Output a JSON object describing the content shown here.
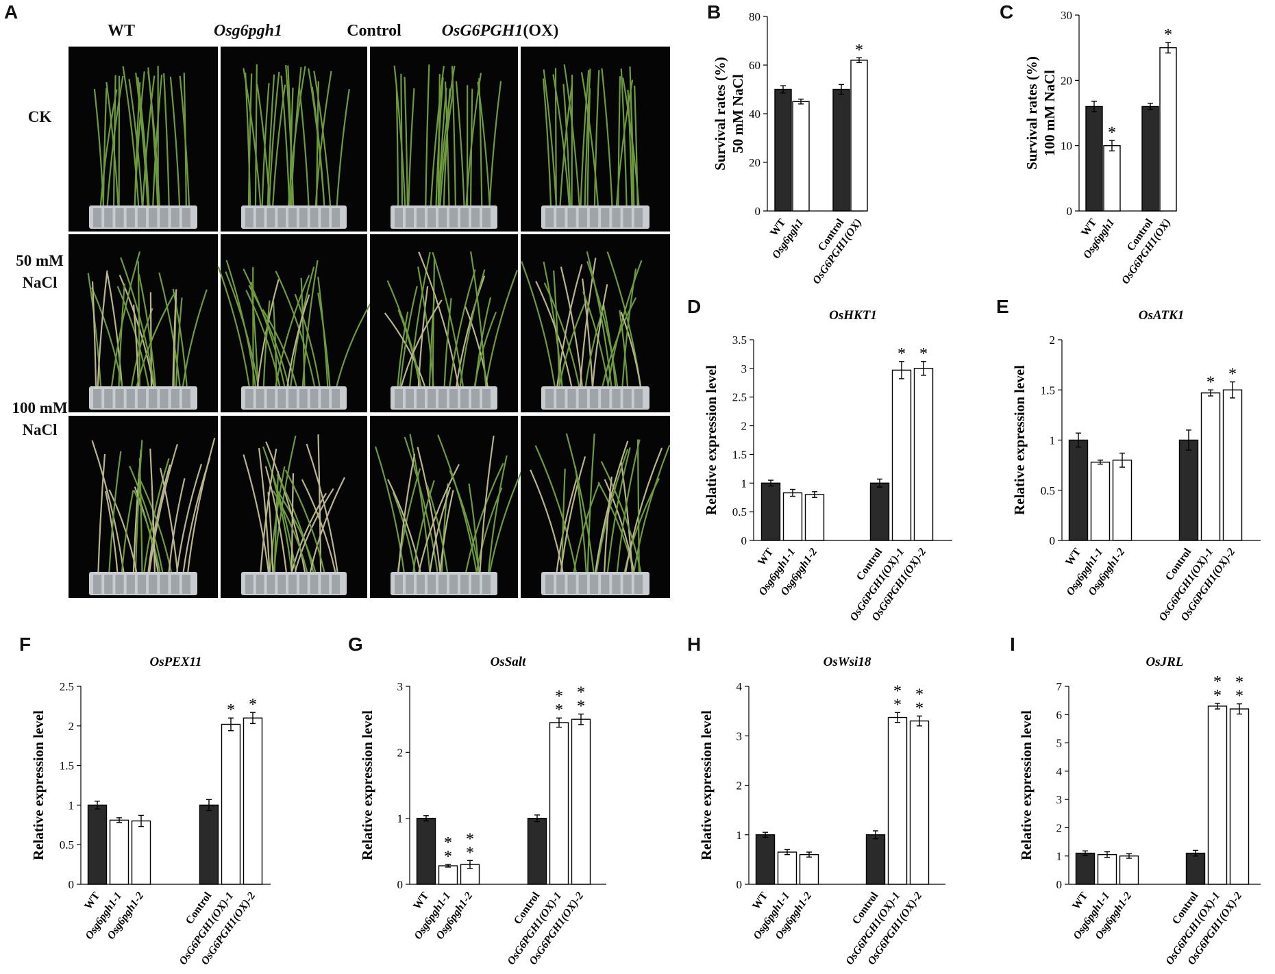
{
  "panel_a": {
    "label": "A",
    "columns": [
      {
        "text": "WT",
        "italic": false
      },
      {
        "text": "Osg6pgh1",
        "italic": true
      },
      {
        "text": "Control",
        "italic": false
      },
      {
        "text": "OsG6PGH1",
        "suffix": "(OX)",
        "italic": true
      }
    ],
    "rows": [
      {
        "line1": "CK",
        "line2": ""
      },
      {
        "line1": "50 mM",
        "line2": "NaCl"
      },
      {
        "line1": "100 mM",
        "line2": "NaCl"
      }
    ],
    "colors": {
      "background": "#050505",
      "leaf": "#6d9a3c",
      "leaf_dry": "#b9b48a",
      "tray": "#c8ccd0"
    }
  },
  "chart_data": [
    {
      "panel": "B",
      "type": "bar",
      "title": "",
      "ylabel": [
        "Survival rates (%)",
        "50 mM NaCl"
      ],
      "ylim": [
        0,
        80
      ],
      "yticks": [
        "0",
        "20",
        "40",
        "60",
        "80"
      ],
      "categories": [
        "WT",
        "Osg6pgh1",
        "Control",
        "OsG6PGH1(OX)"
      ],
      "values": [
        50,
        45,
        50,
        62
      ],
      "errors": [
        1.5,
        1,
        2,
        1
      ],
      "fill": [
        "#2a2a2a",
        "#ffffff",
        "#2a2a2a",
        "#ffffff"
      ],
      "group": [
        0,
        0,
        1,
        1
      ],
      "marks": [
        "",
        "",
        "",
        "*"
      ]
    },
    {
      "panel": "C",
      "type": "bar",
      "title": "",
      "ylabel": [
        "Survival rates (%)",
        "100 mM NaCl"
      ],
      "ylim": [
        0,
        30
      ],
      "yticks": [
        "0",
        "10",
        "20",
        "30"
      ],
      "categories": [
        "WT",
        "Osg6pgh1",
        "Control",
        "OsG6PGH1(OX)"
      ],
      "values": [
        16,
        10,
        16,
        25
      ],
      "errors": [
        0.8,
        0.8,
        0.5,
        0.8
      ],
      "fill": [
        "#2a2a2a",
        "#ffffff",
        "#2a2a2a",
        "#ffffff"
      ],
      "group": [
        0,
        0,
        1,
        1
      ],
      "marks": [
        "",
        "*",
        "",
        "*"
      ]
    },
    {
      "panel": "D",
      "type": "bar",
      "title": "OsHKT1",
      "ylabel": [
        "Relative expression level"
      ],
      "ylim": [
        0,
        3.5
      ],
      "yticks": [
        "0",
        "0.5",
        "1",
        "1.5",
        "2",
        "2.5",
        "3",
        "3.5"
      ],
      "categories": [
        "WT",
        "Osg6pgh1-1",
        "Osg6pgh1-2",
        "Control",
        "OsG6PGH1(OX)-1",
        "OsG6PGH1(OX)-2"
      ],
      "values": [
        1,
        0.83,
        0.8,
        1,
        2.97,
        3.0
      ],
      "errors": [
        0.05,
        0.06,
        0.05,
        0.07,
        0.15,
        0.12
      ],
      "fill": [
        "#2a2a2a",
        "#ffffff",
        "#ffffff",
        "#2a2a2a",
        "#ffffff",
        "#ffffff"
      ],
      "group": [
        0,
        0,
        0,
        1,
        1,
        1
      ],
      "marks": [
        "",
        "",
        "",
        "",
        "*",
        "*"
      ]
    },
    {
      "panel": "E",
      "type": "bar",
      "title": "OsATK1",
      "ylabel": [
        "Relative expression level"
      ],
      "ylim": [
        0,
        2
      ],
      "yticks": [
        "0",
        "0.5",
        "1",
        "1.5",
        "2"
      ],
      "categories": [
        "WT",
        "Osg6pgh1-1",
        "Osg6pgh1-2",
        "Control",
        "OsG6PGH1(OX)-1",
        "OsG6PGH1(OX)-2"
      ],
      "values": [
        1,
        0.78,
        0.8,
        1,
        1.47,
        1.5
      ],
      "errors": [
        0.07,
        0.02,
        0.07,
        0.1,
        0.03,
        0.08
      ],
      "fill": [
        "#2a2a2a",
        "#ffffff",
        "#ffffff",
        "#2a2a2a",
        "#ffffff",
        "#ffffff"
      ],
      "group": [
        0,
        0,
        0,
        1,
        1,
        1
      ],
      "marks": [
        "",
        "",
        "",
        "",
        "*",
        "*"
      ]
    },
    {
      "panel": "F",
      "type": "bar",
      "title": "OsPEX11",
      "ylabel": [
        "Relative expression level"
      ],
      "ylim": [
        0,
        2.5
      ],
      "yticks": [
        "0",
        "0.5",
        "1",
        "1.5",
        "2",
        "2.5"
      ],
      "categories": [
        "WT",
        "Osg6pgh1-1",
        "Osg6pgh1-2",
        "Control",
        "OsG6PGH1(OX)-1",
        "OsG6PGH1(OX)-2"
      ],
      "values": [
        1,
        0.81,
        0.8,
        1,
        2.02,
        2.1
      ],
      "errors": [
        0.05,
        0.03,
        0.07,
        0.07,
        0.08,
        0.07
      ],
      "fill": [
        "#2a2a2a",
        "#ffffff",
        "#ffffff",
        "#2a2a2a",
        "#ffffff",
        "#ffffff"
      ],
      "group": [
        0,
        0,
        0,
        1,
        1,
        1
      ],
      "marks": [
        "",
        "",
        "",
        "",
        "*",
        "*"
      ]
    },
    {
      "panel": "G",
      "type": "bar",
      "title": "OsSalt",
      "ylabel": [
        "Relative expression level"
      ],
      "ylim": [
        0,
        3
      ],
      "yticks": [
        "0",
        "1",
        "2",
        "3"
      ],
      "categories": [
        "WT",
        "Osg6pgh1-1",
        "Osg6pgh1-2",
        "Control",
        "OsG6PGH1(OX)-1",
        "OsG6PGH1(OX)-2"
      ],
      "values": [
        1,
        0.28,
        0.3,
        1,
        2.45,
        2.5
      ],
      "errors": [
        0.04,
        0.02,
        0.06,
        0.05,
        0.07,
        0.08
      ],
      "fill": [
        "#2a2a2a",
        "#ffffff",
        "#ffffff",
        "#2a2a2a",
        "#ffffff",
        "#ffffff"
      ],
      "group": [
        0,
        0,
        0,
        1,
        1,
        1
      ],
      "marks": [
        "",
        "**",
        "**",
        "",
        "**",
        "**"
      ]
    },
    {
      "panel": "H",
      "type": "bar",
      "title": "OsWsi18",
      "ylabel": [
        "Relative expression level"
      ],
      "ylim": [
        0,
        4
      ],
      "yticks": [
        "0",
        "1",
        "2",
        "3",
        "4"
      ],
      "categories": [
        "WT",
        "Osg6pgh1-1",
        "Osg6pgh1-2",
        "Control",
        "OsG6PGH1(OX)-1",
        "OsG6PGH1(OX)-2"
      ],
      "values": [
        1,
        0.65,
        0.6,
        1,
        3.37,
        3.3
      ],
      "errors": [
        0.05,
        0.05,
        0.05,
        0.08,
        0.1,
        0.1
      ],
      "fill": [
        "#2a2a2a",
        "#ffffff",
        "#ffffff",
        "#2a2a2a",
        "#ffffff",
        "#ffffff"
      ],
      "group": [
        0,
        0,
        0,
        1,
        1,
        1
      ],
      "marks": [
        "",
        "",
        "",
        "",
        "**",
        "**"
      ]
    },
    {
      "panel": "I",
      "type": "bar",
      "title": "OsJRL",
      "ylabel": [
        "Relative expression level"
      ],
      "ylim": [
        0,
        7
      ],
      "yticks": [
        "0",
        "1",
        "2",
        "3",
        "4",
        "5",
        "6",
        "7"
      ],
      "categories": [
        "WT",
        "Osg6pgh1-1",
        "Osg6pgh1-2",
        "Control",
        "OsG6PGH1(OX)-1",
        "OsG6PGH1(OX)-2"
      ],
      "values": [
        1.1,
        1.05,
        1.0,
        1.1,
        6.3,
        6.2
      ],
      "errors": [
        0.08,
        0.1,
        0.08,
        0.1,
        0.1,
        0.18
      ],
      "fill": [
        "#2a2a2a",
        "#ffffff",
        "#ffffff",
        "#2a2a2a",
        "#ffffff",
        "#ffffff"
      ],
      "group": [
        0,
        0,
        0,
        1,
        1,
        1
      ],
      "marks": [
        "",
        "",
        "",
        "",
        "**",
        "**"
      ]
    }
  ]
}
